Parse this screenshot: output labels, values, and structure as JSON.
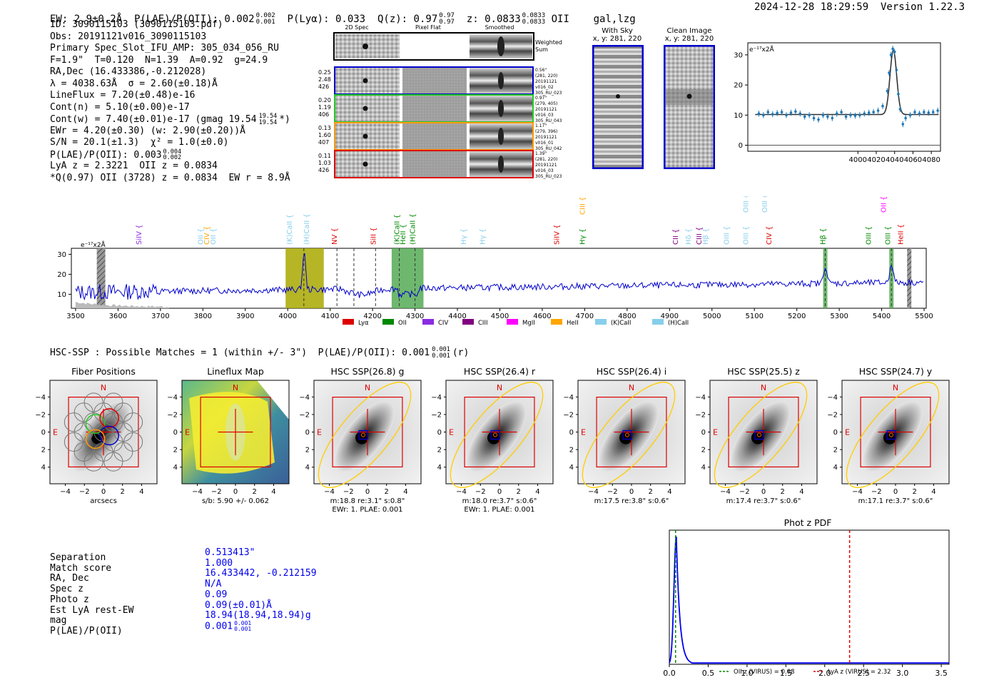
{
  "header": {
    "left": "EW: 2.9±0.2Å  P(LAE)/P(OII): 0.002",
    "plae_sup": "0.002",
    "plae_sub": "0.001",
    "plya": "P(Lyα): 0.033",
    "qz": "Q(z): 0.97",
    "qz_sup": "0.97",
    "qz_sub": "0.97",
    "z": "z: 0.0833",
    "z_sup": "0.0833",
    "z_sub": "0.0833",
    "cls": "OII    gal,lzg",
    "right": "2024-12-28 18:29:59  Version 1.22.3"
  },
  "info": {
    "l1": "ID: 3090115103 (3090115103.pdf)",
    "l2": "Obs: 20191121v016_3090115103",
    "l3": "Primary Spec_Slot_IFU_AMP: 305_034_056_RU",
    "l4": "F=1.9\"  T=0.120  N=1.39  A=0.92  g=24.9",
    "l5": "RA,Dec (16.433386,-0.212028)",
    "l6": "λ = 4038.63Å  σ = 2.60(±0.18)Å",
    "l7": "LineFlux = 7.20(±0.48)e-16",
    "l8": "Cont(n) = 5.10(±0.00)e-17",
    "l9": "Cont(w) = 7.40(±0.01)e-17 (gmag 19.54",
    "l9_sup": "19.54",
    "l9_sub": "19.54",
    "l9_end": "*)",
    "l10": "EWr = 4.20(±0.30) (w: 2.90(±0.20))Å",
    "l11": "S/N = 20.1(±1.3)  χ² = 1.0(±0.0)",
    "l12": "P(LAE)/P(OII): 0.003",
    "l12_sup": "0.004",
    "l12_sub": "0.002",
    "l13": "LyA z = 2.3221  OII z = 0.0834",
    "l14": "*Q(0.97) OII (3728) z = 0.0834  EW r = 8.9Å"
  },
  "cutouts": {
    "col1": "2D Spec",
    "col2": "Pixel Flat",
    "col3": "Smoothed",
    "weighted": "Weighted",
    "sum": "Sum",
    "rows": [
      {
        "l1": "0.25",
        "l2": "2.48",
        "l3": "426",
        "r1": "0.56\"",
        "r2": "(281, 220)",
        "r3": "20191121",
        "r4": "v016_02",
        "r5": "305_RU_023"
      },
      {
        "l1": "0.20",
        "l2": "1.19",
        "l3": "406",
        "r1": "0.97\"",
        "r2": "(279, 405)",
        "r3": "20191121",
        "r4": "v016_03",
        "r5": "305_RU_043"
      },
      {
        "l1": "0.13",
        "l2": "1.60",
        "l3": "407",
        "r1": "1.17\"",
        "r2": "(279, 396)",
        "r3": "20191121",
        "r4": "v016_01",
        "r5": "305_RU_042"
      },
      {
        "l1": "0.11",
        "l2": "1.03",
        "l3": "426",
        "r1": "1.39\"",
        "r2": "(281, 220)",
        "r3": "20191121",
        "r4": "v016_03",
        "r5": "305_RU_023"
      }
    ],
    "colors": [
      "#0000cc",
      "#22cc22",
      "#ff9900",
      "#dd0000"
    ]
  },
  "sky": {
    "t1": "With Sky",
    "t1b": "x, y: 281, 220",
    "t2": "Clean Image",
    "t2b": "x, y: 281, 220"
  },
  "sidebar_meta": {
    "hsc_line": "HSC-SSP : Possible Matches = 1 (within +/- 3\")  P(LAE)/P(OII): 0.001",
    "hsc_sup": "0.001",
    "hsc_sub": "0.001",
    "hsc_end": "(r)"
  },
  "panels": [
    {
      "title": "Fiber Positions",
      "xlabel": "arcsecs",
      "l2": ""
    },
    {
      "title": "Lineflux Map",
      "xlabel": "s/b: 5.90 +/- 0.062",
      "l2": ""
    },
    {
      "title": "HSC SSP(26.8) g",
      "xlabel": "m:18.8  re:3.1\"  s:0.8\"",
      "l2": "EWr: 1. PLAE: 0.001"
    },
    {
      "title": "HSC SSP(26.4) r",
      "xlabel": "m:18.0  re:3.7\"  s:0.6\"",
      "l2": "EWr: 1. PLAE: 0.001"
    },
    {
      "title": "HSC SSP(26.4) i",
      "xlabel": "m:17.5  re:3.8\"  s:0.6\"",
      "l2": ""
    },
    {
      "title": "HSC SSP(25.5) z",
      "xlabel": "m:17.4  re:3.7\"  s:0.6\"",
      "l2": ""
    },
    {
      "title": "HSC SSP(24.7) y",
      "xlabel": "m:17.1  re:3.7\"  s:0.6\"",
      "l2": ""
    }
  ],
  "panel_ticks": [
    "4",
    "2",
    "0",
    "−2",
    "−4"
  ],
  "panel_xticks": [
    "−4",
    "−2",
    "0",
    "2",
    "4"
  ],
  "compass": {
    "n": "N",
    "e": "E"
  },
  "match": {
    "labels": [
      "Separation",
      "Match score",
      "RA, Dec",
      "Spec z",
      "Photo z",
      "Est LyA rest-EW",
      "mag",
      "P(LAE)/P(OII)"
    ],
    "values": [
      "0.513413\"",
      "1.000",
      "16.433442, -0.212159",
      "N/A",
      "0.09",
      "0.09(±0.01)Å",
      "18.94(18.94,18.94)g",
      "0.001"
    ],
    "last_sup": "0.001",
    "last_sub": "0.001"
  },
  "chart_data": [
    {
      "type": "line",
      "name": "line-fit",
      "title": "",
      "ylabel": "e⁻¹⁷x2Å",
      "xlim": [
        3880,
        4090
      ],
      "ylim": [
        -2,
        34
      ],
      "xticks": [
        4000,
        4020,
        4040,
        4060,
        4080
      ],
      "yticks": [
        0,
        10,
        20,
        30
      ],
      "x": [
        3892,
        3897,
        3902,
        3907,
        3912,
        3917,
        3922,
        3927,
        3932,
        3937,
        3942,
        3947,
        3952,
        3957,
        3962,
        3967,
        3972,
        3977,
        3982,
        3987,
        3992,
        3997,
        4002,
        4007,
        4012,
        4017,
        4022,
        4027,
        4032,
        4034,
        4036,
        4038,
        4040,
        4042,
        4044,
        4046,
        4049,
        4052,
        4057,
        4062,
        4067,
        4072,
        4077,
        4082,
        4087
      ],
      "y": [
        10.5,
        10,
        11,
        10.3,
        10.7,
        11,
        10,
        10.8,
        11.2,
        10.5,
        9.5,
        10,
        9,
        8.5,
        10,
        9.5,
        9,
        10.5,
        11,
        9.5,
        10,
        9.8,
        10,
        10.5,
        10.8,
        11,
        11.5,
        13,
        18,
        24,
        30,
        32,
        31,
        25,
        17,
        12,
        7,
        9,
        10,
        11,
        10.5,
        11,
        10.8,
        11,
        11.5
      ],
      "fit_peak": 31.5,
      "fit_center": 4038.6,
      "fit_sigma": 2.6,
      "continuum": 10.2
    },
    {
      "type": "line",
      "name": "full-spectrum",
      "ylabel": "e⁻¹⁷x2Å",
      "xlim": [
        3490,
        5505
      ],
      "ylim": [
        3,
        33
      ],
      "xticks": [
        3500,
        3600,
        3700,
        3800,
        3900,
        4000,
        4100,
        4200,
        4300,
        4400,
        4500,
        4600,
        4700,
        4800,
        4900,
        5000,
        5100,
        5200,
        5300,
        5400,
        5500
      ],
      "yticks": [
        10,
        20,
        30
      ],
      "continuum_start": 11,
      "continuum_end": 16,
      "emission": [
        {
          "x": 4038.6,
          "peak": 31,
          "sigma": 2.6
        },
        {
          "x": 5267,
          "peak": 21,
          "sigma": 3
        },
        {
          "x": 5423,
          "peak": 22,
          "sigma": 3
        }
      ],
      "bands": [
        {
          "x1": 3995,
          "x2": 4085,
          "color": "#a8a800"
        },
        {
          "x1": 4245,
          "x2": 4320,
          "color": "#55aa55"
        },
        {
          "x1": 5262,
          "x2": 5272,
          "color": "#55aa55"
        },
        {
          "x1": 5418,
          "x2": 5428,
          "color": "#55aa55"
        }
      ],
      "hatch": [
        {
          "x1": 3550,
          "x2": 3570
        },
        {
          "x1": 5460,
          "x2": 5470
        }
      ],
      "dashed": [
        4038,
        4116,
        4156,
        4207,
        4263,
        4300,
        5267,
        5423
      ],
      "line_labels": [
        {
          "x": 3655,
          "t": "SiIV",
          "c": "#8a2be2",
          "row": 0
        },
        {
          "x": 3800,
          "t": "OII",
          "c": "#87ceeb",
          "row": 0
        },
        {
          "x": 3815,
          "t": "CIV",
          "c": "#ffa500",
          "row": 0
        },
        {
          "x": 3830,
          "t": "OII",
          "c": "#87ceeb",
          "row": 0
        },
        {
          "x": 4010,
          "t": "(K)CaII",
          "c": "#87ceeb",
          "row": 0
        },
        {
          "x": 4050,
          "t": "(H)CaII",
          "c": "#87ceeb",
          "row": 0
        },
        {
          "x": 4116,
          "t": "NV",
          "c": "#dd0000",
          "row": 0
        },
        {
          "x": 4207,
          "t": "SiII",
          "c": "#dd0000",
          "row": 0
        },
        {
          "x": 4263,
          "t": "(K)CaII",
          "c": "#008800",
          "row": 0
        },
        {
          "x": 4277,
          "t": "HeII",
          "c": "#008800",
          "row": 0
        },
        {
          "x": 4300,
          "t": "(H)CaII",
          "c": "#008800",
          "row": 0
        },
        {
          "x": 4420,
          "t": "Hγ",
          "c": "#87ceeb",
          "row": 0
        },
        {
          "x": 4465,
          "t": "Hγ",
          "c": "#87ceeb",
          "row": 0
        },
        {
          "x": 4640,
          "t": "SiIV",
          "c": "#dd0000",
          "row": 0
        },
        {
          "x": 4700,
          "t": "CIII",
          "c": "#ffa500",
          "row": 1
        },
        {
          "x": 4700,
          "t": "Hγ",
          "c": "#008800",
          "row": 0
        },
        {
          "x": 4920,
          "t": "CII",
          "c": "#800080",
          "row": 0
        },
        {
          "x": 4950,
          "t": "Hδ",
          "c": "#87ceeb",
          "row": 0
        },
        {
          "x": 4975,
          "t": "CIII",
          "c": "#800080",
          "row": 0
        },
        {
          "x": 4990,
          "t": "Hβ",
          "c": "#87ceeb",
          "row": 0
        },
        {
          "x": 5040,
          "t": "OIII",
          "c": "#87ceeb",
          "row": 0
        },
        {
          "x": 5085,
          "t": "OIII",
          "c": "#87ceeb",
          "row": 0
        },
        {
          "x": 5085,
          "t": "OIII",
          "c": "#87ceeb",
          "row": 2
        },
        {
          "x": 5130,
          "t": "OIII",
          "c": "#87ceeb",
          "row": 2
        },
        {
          "x": 5140,
          "t": "CIV",
          "c": "#dd0000",
          "row": 0
        },
        {
          "x": 5267,
          "t": "Hβ",
          "c": "#008800",
          "row": 0
        },
        {
          "x": 5375,
          "t": "OIII",
          "c": "#008800",
          "row": 0
        },
        {
          "x": 5420,
          "t": "OIII",
          "c": "#008800",
          "row": 0
        },
        {
          "x": 5410,
          "t": "OII",
          "c": "#ff00ff",
          "row": 3
        },
        {
          "x": 5450,
          "t": "HeII",
          "c": "#dd0000",
          "row": 0
        }
      ],
      "legend": [
        {
          "t": "Lyα",
          "c": "#dd0000"
        },
        {
          "t": "OII",
          "c": "#008800"
        },
        {
          "t": "CIV",
          "c": "#8a2be2"
        },
        {
          "t": "CIII",
          "c": "#800080"
        },
        {
          "t": "MgII",
          "c": "#ff00ff"
        },
        {
          "t": "HeII",
          "c": "#ffa500"
        },
        {
          "t": "(K)CaII",
          "c": "#87ceeb"
        },
        {
          "t": "(H)CaII",
          "c": "#87ceeb"
        }
      ]
    },
    {
      "type": "line",
      "name": "photz-pdf",
      "title": "Phot z PDF",
      "xlim": [
        0,
        3.6
      ],
      "ylim": [
        0,
        1.05
      ],
      "xticks": [
        0.0,
        0.5,
        1.0,
        1.5,
        2.0,
        2.5,
        3.0,
        3.5
      ],
      "peak_x": 0.09,
      "peak_w": 0.03,
      "tail": 0.01,
      "oii_z": 0.08,
      "lya_z": 2.32,
      "legend": [
        "OII z (VIRUS) = 0.08",
        "LyA z (VIRUS) = 2.32"
      ]
    }
  ]
}
